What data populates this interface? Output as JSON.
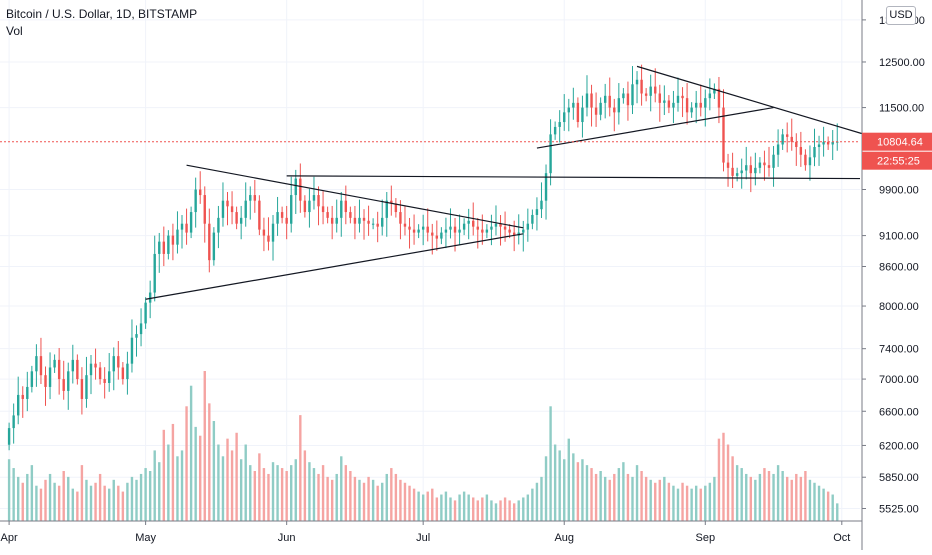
{
  "header": {
    "symbol_line": "Bitcoin / U.S. Dollar, 1D, BITSTAMP",
    "volume_label": "Vol",
    "currency_button": "USD"
  },
  "chart_data": {
    "type": "candlestick",
    "title": "Bitcoin / U.S. Dollar, 1D, BITSTAMP",
    "price_scale": "log",
    "price_axis_ticks": [
      "5525.00",
      "5850.00",
      "6200.00",
      "6600.00",
      "7000.00",
      "7400.00",
      "8000.00",
      "8600.00",
      "9100.00",
      "9900.00",
      "11500.00",
      "12500.00",
      "13500.00"
    ],
    "time_axis_ticks": [
      "Apr",
      "May",
      "Jun",
      "Jul",
      "Aug",
      "Sep",
      "Oct"
    ],
    "last_price_label": "10804.64",
    "countdown_label": "22:55:25",
    "x_range": [
      "2020-03-30",
      "2020-10-05"
    ],
    "y_range": [
      5400,
      14000
    ],
    "colors": {
      "up": "#26a69a",
      "down": "#ef5350",
      "up_volume": "#8fccc5",
      "down_volume": "#f5a4a2",
      "price_line": "#ef5350",
      "trendline": "#131722",
      "grid": "#f0f3fa"
    },
    "candle_data_note": "Daily OHLC approximated from the chart; days are consecutive starting 2020-03-30",
    "closes": [
      6400,
      6550,
      6800,
      6750,
      6900,
      7100,
      7300,
      7050,
      6900,
      7150,
      7250,
      7000,
      6850,
      7100,
      7250,
      7000,
      6750,
      7050,
      7200,
      7150,
      7000,
      6950,
      7100,
      7300,
      7150,
      7000,
      7200,
      7550,
      7600,
      7750,
      8050,
      8200,
      8800,
      9000,
      8800,
      9100,
      8950,
      9200,
      9300,
      9150,
      9500,
      9900,
      9800,
      9300,
      8700,
      9150,
      9400,
      9700,
      9600,
      9500,
      9300,
      9400,
      9700,
      9800,
      9700,
      9200,
      9100,
      9000,
      9300,
      9500,
      9400,
      9300,
      9800,
      10100,
      9700,
      9500,
      9700,
      9800,
      9600,
      9500,
      9400,
      9300,
      9400,
      9700,
      9500,
      9400,
      9300,
      9400,
      9350,
      9300,
      9300,
      9250,
      9400,
      9700,
      9650,
      9500,
      9300,
      9250,
      9200,
      9150,
      9200,
      9250,
      9150,
      9100,
      9050,
      9150,
      9200,
      9250,
      9150,
      9200,
      9300,
      9350,
      9250,
      9200,
      9150,
      9200,
      9250,
      9300,
      9250,
      9200,
      9150,
      9100,
      9150,
      9200,
      9300,
      9450,
      9550,
      9700,
      10200,
      10950,
      11100,
      11200,
      11400,
      11500,
      11600,
      11200,
      11500,
      11800,
      11500,
      11350,
      11600,
      11750,
      11500,
      11400,
      11700,
      11800,
      11550,
      12000,
      12100,
      11800,
      11750,
      11950,
      11800,
      11600,
      11650,
      11500,
      11600,
      11750,
      11700,
      11400,
      11500,
      11600,
      11500,
      11700,
      11800,
      11900,
      11500,
      10400,
      10300,
      10150,
      10200,
      10250,
      10350,
      10200,
      10300,
      10400,
      10350,
      10300,
      10550,
      10750,
      10950,
      10900,
      10800,
      10700,
      10550,
      10350,
      10500,
      10700,
      10750,
      10800,
      10750,
      10800,
      10804.64
    ],
    "volumes": [
      2.1,
      1.8,
      1.5,
      1.3,
      1.6,
      1.9,
      1.2,
      1.1,
      1.4,
      1.6,
      1.3,
      1.2,
      1.7,
      1.5,
      1.1,
      1.0,
      1.9,
      1.4,
      1.2,
      1.3,
      1.6,
      1.2,
      1.1,
      1.4,
      1.2,
      1.0,
      1.3,
      1.5,
      1.4,
      1.6,
      1.8,
      1.7,
      2.4,
      2.0,
      3.1,
      2.6,
      3.3,
      2.2,
      2.4,
      3.9,
      4.6,
      3.2,
      2.9,
      5.1,
      4.0,
      3.4,
      2.6,
      2.2,
      2.8,
      2.4,
      3.0,
      2.1,
      2.6,
      1.9,
      1.7,
      2.3,
      1.8,
      1.6,
      2.0,
      1.9,
      1.8,
      1.7,
      1.9,
      2.1,
      3.6,
      2.4,
      2.0,
      1.8,
      1.6,
      1.9,
      1.5,
      1.4,
      1.6,
      2.2,
      1.9,
      1.7,
      1.5,
      1.4,
      1.3,
      1.5,
      1.4,
      1.2,
      1.3,
      1.6,
      1.8,
      1.6,
      1.4,
      1.3,
      1.2,
      1.1,
      1.0,
      0.9,
      1.0,
      1.1,
      0.8,
      0.9,
      1.0,
      0.8,
      0.7,
      0.9,
      1.0,
      0.9,
      0.8,
      0.7,
      0.8,
      0.9,
      0.7,
      0.6,
      0.7,
      0.8,
      0.7,
      0.6,
      0.7,
      0.8,
      0.9,
      1.1,
      1.3,
      1.5,
      2.2,
      3.9,
      2.6,
      2.4,
      2.1,
      2.8,
      2.3,
      2.0,
      2.1,
      1.9,
      1.8,
      1.6,
      1.7,
      1.5,
      1.4,
      1.6,
      1.8,
      2.0,
      1.6,
      1.5,
      1.9,
      1.7,
      1.5,
      1.4,
      1.3,
      1.4,
      1.5,
      1.3,
      1.2,
      1.1,
      1.3,
      1.2,
      1.1,
      1.2,
      1.1,
      1.2,
      1.3,
      1.5,
      2.8,
      3.0,
      2.6,
      2.2,
      1.9,
      1.8,
      1.6,
      1.5,
      1.4,
      1.6,
      1.8,
      1.7,
      1.6,
      1.9,
      1.7,
      1.5,
      1.4,
      1.6,
      1.5,
      1.7,
      1.4,
      1.3,
      1.2,
      1.1,
      1.0,
      0.9,
      0.6
    ]
  }
}
